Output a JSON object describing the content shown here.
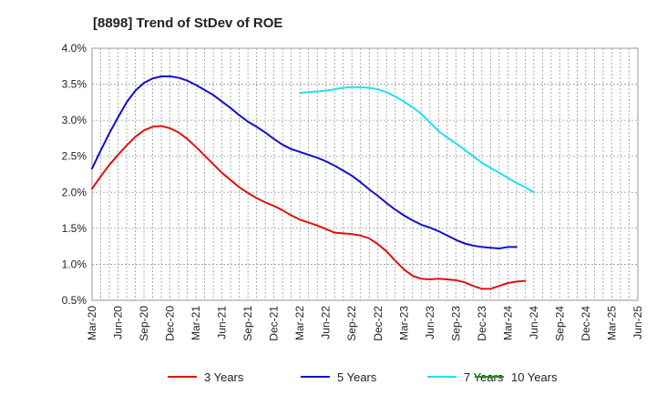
{
  "chart_data": {
    "type": "line",
    "title": "[8898]  Trend of StDev of ROE",
    "xlabel": "",
    "ylabel": "",
    "ylim": [
      0.5,
      4.0
    ],
    "y_ticks": [
      "0.5%",
      "1.0%",
      "1.5%",
      "2.0%",
      "2.5%",
      "3.0%",
      "3.5%",
      "4.0%"
    ],
    "y_tick_values": [
      0.5,
      1.0,
      1.5,
      2.0,
      2.5,
      3.0,
      3.5,
      4.0
    ],
    "x_ticks": [
      "Mar-20",
      "Jun-20",
      "Sep-20",
      "Dec-20",
      "Mar-21",
      "Jun-21",
      "Sep-21",
      "Dec-21",
      "Mar-22",
      "Jun-22",
      "Sep-22",
      "Dec-22",
      "Mar-23",
      "Jun-23",
      "Sep-23",
      "Dec-23",
      "Mar-24",
      "Jun-24",
      "Sep-24",
      "Dec-24",
      "Mar-25",
      "Jun-25"
    ],
    "grid": true,
    "legend_position": "bottom",
    "series": [
      {
        "name": "3 Years",
        "color": "#e01010",
        "x_start_index": 0,
        "values": [
          2.05,
          2.22,
          2.38,
          2.52,
          2.65,
          2.77,
          2.86,
          2.91,
          2.92,
          2.89,
          2.83,
          2.74,
          2.63,
          2.51,
          2.39,
          2.27,
          2.17,
          2.07,
          1.99,
          1.92,
          1.86,
          1.81,
          1.75,
          1.68,
          1.62,
          1.58,
          1.54,
          1.49,
          1.44,
          1.43,
          1.42,
          1.4,
          1.36,
          1.28,
          1.18,
          1.05,
          0.93,
          0.84,
          0.8,
          0.79,
          0.8,
          0.79,
          0.78,
          0.75,
          0.7,
          0.66,
          0.66,
          0.7,
          0.74,
          0.76,
          0.77
        ]
      },
      {
        "name": "5 Years",
        "color": "#1010c8",
        "x_start_index": 0,
        "values": [
          2.33,
          2.58,
          2.82,
          3.04,
          3.25,
          3.41,
          3.52,
          3.58,
          3.61,
          3.61,
          3.59,
          3.55,
          3.49,
          3.42,
          3.35,
          3.26,
          3.17,
          3.07,
          2.98,
          2.91,
          2.83,
          2.74,
          2.66,
          2.6,
          2.56,
          2.52,
          2.48,
          2.43,
          2.37,
          2.3,
          2.23,
          2.14,
          2.04,
          1.95,
          1.85,
          1.76,
          1.68,
          1.61,
          1.55,
          1.51,
          1.46,
          1.4,
          1.34,
          1.29,
          1.26,
          1.24,
          1.23,
          1.22,
          1.24,
          1.24
        ]
      },
      {
        "name": "7 Years",
        "color": "#20e0f0",
        "x_start_index": 24,
        "values": [
          3.38,
          3.39,
          3.4,
          3.41,
          3.43,
          3.45,
          3.46,
          3.46,
          3.45,
          3.43,
          3.39,
          3.33,
          3.26,
          3.18,
          3.09,
          2.97,
          2.85,
          2.76,
          2.68,
          2.59,
          2.5,
          2.41,
          2.34,
          2.27,
          2.2,
          2.13,
          2.07,
          2.0
        ]
      },
      {
        "name": "10 Years",
        "color": "#228b22",
        "x_start_index": 0,
        "values": []
      }
    ]
  }
}
